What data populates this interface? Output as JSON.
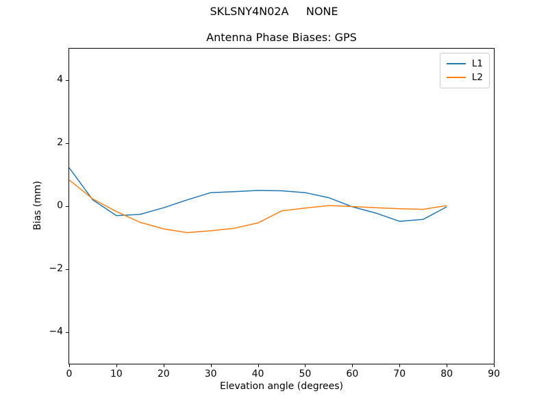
{
  "chart_data": {
    "type": "line",
    "suptitle": "SKLSNY4N02A     NONE",
    "title": "Antenna Phase Biases: GPS",
    "xlabel": "Elevation angle (degrees)",
    "ylabel": "Bias (mm)",
    "xlim": [
      0,
      90
    ],
    "ylim": [
      -5,
      5
    ],
    "xticks": [
      0,
      10,
      20,
      30,
      40,
      50,
      60,
      70,
      80,
      90
    ],
    "yticks": [
      -4,
      -2,
      0,
      2,
      4
    ],
    "grid": false,
    "legend_position": "upper right",
    "x": [
      0,
      5,
      10,
      15,
      20,
      25,
      30,
      35,
      40,
      45,
      50,
      55,
      60,
      65,
      70,
      75,
      80
    ],
    "series": [
      {
        "name": "L1",
        "color": "#1f77b4",
        "values": [
          1.22,
          0.2,
          -0.3,
          -0.26,
          -0.05,
          0.2,
          0.43,
          0.46,
          0.5,
          0.49,
          0.43,
          0.27,
          -0.02,
          -0.22,
          -0.48,
          -0.42,
          -0.02
        ]
      },
      {
        "name": "L2",
        "color": "#ff7f0e",
        "values": [
          0.83,
          0.23,
          -0.17,
          -0.51,
          -0.72,
          -0.84,
          -0.78,
          -0.7,
          -0.53,
          -0.15,
          -0.06,
          0.02,
          -0.01,
          -0.05,
          -0.08,
          -0.1,
          0.02
        ]
      }
    ]
  },
  "colors": {
    "spine": "#000000",
    "legend_border": "#cccccc",
    "background": "#ffffff"
  }
}
